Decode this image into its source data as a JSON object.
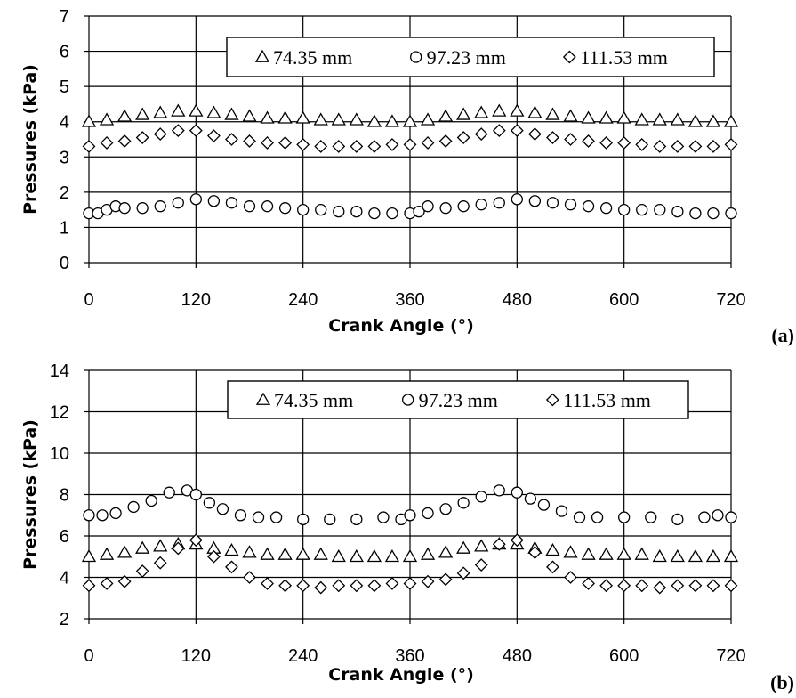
{
  "chart_data": [
    {
      "type": "scatter",
      "panel_label": "(a)",
      "xlabel": "Crank Angle (°)",
      "ylabel": "Pressures (kPa)",
      "xlim": [
        0,
        720
      ],
      "ylim": [
        0,
        7
      ],
      "xticks": [
        0,
        120,
        240,
        360,
        480,
        600,
        720
      ],
      "yticks": [
        0,
        1,
        2,
        3,
        4,
        5,
        6,
        7
      ],
      "grid": true,
      "legend_position": "top-right",
      "series": [
        {
          "name": "74.35 mm",
          "marker": "triangle",
          "points": [
            [
              0,
              4.0
            ],
            [
              20,
              4.05
            ],
            [
              40,
              4.15
            ],
            [
              60,
              4.2
            ],
            [
              80,
              4.25
            ],
            [
              100,
              4.3
            ],
            [
              120,
              4.3
            ],
            [
              140,
              4.25
            ],
            [
              160,
              4.2
            ],
            [
              180,
              4.15
            ],
            [
              200,
              4.1
            ],
            [
              220,
              4.1
            ],
            [
              240,
              4.1
            ],
            [
              260,
              4.05
            ],
            [
              280,
              4.05
            ],
            [
              300,
              4.05
            ],
            [
              320,
              4.0
            ],
            [
              340,
              4.0
            ],
            [
              360,
              4.0
            ],
            [
              380,
              4.05
            ],
            [
              400,
              4.15
            ],
            [
              420,
              4.2
            ],
            [
              440,
              4.25
            ],
            [
              460,
              4.3
            ],
            [
              480,
              4.3
            ],
            [
              500,
              4.25
            ],
            [
              520,
              4.2
            ],
            [
              540,
              4.15
            ],
            [
              560,
              4.1
            ],
            [
              580,
              4.1
            ],
            [
              600,
              4.1
            ],
            [
              620,
              4.05
            ],
            [
              640,
              4.05
            ],
            [
              660,
              4.05
            ],
            [
              680,
              4.0
            ],
            [
              700,
              4.0
            ],
            [
              720,
              4.0
            ]
          ]
        },
        {
          "name": "97.23 mm",
          "marker": "circle",
          "points": [
            [
              0,
              1.4
            ],
            [
              10,
              1.4
            ],
            [
              20,
              1.5
            ],
            [
              30,
              1.6
            ],
            [
              40,
              1.55
            ],
            [
              60,
              1.55
            ],
            [
              80,
              1.6
            ],
            [
              100,
              1.7
            ],
            [
              120,
              1.8
            ],
            [
              140,
              1.75
            ],
            [
              160,
              1.7
            ],
            [
              180,
              1.6
            ],
            [
              200,
              1.6
            ],
            [
              220,
              1.55
            ],
            [
              240,
              1.5
            ],
            [
              260,
              1.5
            ],
            [
              280,
              1.45
            ],
            [
              300,
              1.45
            ],
            [
              320,
              1.4
            ],
            [
              340,
              1.4
            ],
            [
              360,
              1.4
            ],
            [
              370,
              1.45
            ],
            [
              380,
              1.6
            ],
            [
              400,
              1.55
            ],
            [
              420,
              1.6
            ],
            [
              440,
              1.65
            ],
            [
              460,
              1.7
            ],
            [
              480,
              1.8
            ],
            [
              500,
              1.75
            ],
            [
              520,
              1.7
            ],
            [
              540,
              1.65
            ],
            [
              560,
              1.6
            ],
            [
              580,
              1.55
            ],
            [
              600,
              1.5
            ],
            [
              620,
              1.5
            ],
            [
              640,
              1.5
            ],
            [
              660,
              1.45
            ],
            [
              680,
              1.4
            ],
            [
              700,
              1.4
            ],
            [
              720,
              1.4
            ]
          ]
        },
        {
          "name": "111.53 mm",
          "marker": "diamond",
          "points": [
            [
              0,
              3.3
            ],
            [
              20,
              3.4
            ],
            [
              40,
              3.45
            ],
            [
              60,
              3.55
            ],
            [
              80,
              3.65
            ],
            [
              100,
              3.75
            ],
            [
              120,
              3.75
            ],
            [
              140,
              3.6
            ],
            [
              160,
              3.5
            ],
            [
              180,
              3.45
            ],
            [
              200,
              3.4
            ],
            [
              220,
              3.4
            ],
            [
              240,
              3.35
            ],
            [
              260,
              3.3
            ],
            [
              280,
              3.3
            ],
            [
              300,
              3.3
            ],
            [
              320,
              3.3
            ],
            [
              340,
              3.35
            ],
            [
              360,
              3.35
            ],
            [
              380,
              3.4
            ],
            [
              400,
              3.45
            ],
            [
              420,
              3.55
            ],
            [
              440,
              3.65
            ],
            [
              460,
              3.75
            ],
            [
              480,
              3.75
            ],
            [
              500,
              3.65
            ],
            [
              520,
              3.55
            ],
            [
              540,
              3.5
            ],
            [
              560,
              3.45
            ],
            [
              580,
              3.4
            ],
            [
              600,
              3.4
            ],
            [
              620,
              3.35
            ],
            [
              640,
              3.3
            ],
            [
              660,
              3.3
            ],
            [
              680,
              3.3
            ],
            [
              700,
              3.3
            ],
            [
              720,
              3.35
            ]
          ]
        }
      ]
    },
    {
      "type": "scatter",
      "panel_label": "(b)",
      "xlabel": "Crank Angle (°)",
      "ylabel": "Pressures (kPa)",
      "xlim": [
        0,
        720
      ],
      "ylim": [
        2,
        14
      ],
      "xticks": [
        0,
        120,
        240,
        360,
        480,
        600,
        720
      ],
      "yticks": [
        2,
        4,
        6,
        8,
        10,
        12,
        14
      ],
      "grid": true,
      "legend_position": "top-right",
      "series": [
        {
          "name": "74.35 mm",
          "marker": "triangle",
          "points": [
            [
              0,
              5.0
            ],
            [
              20,
              5.1
            ],
            [
              40,
              5.2
            ],
            [
              60,
              5.4
            ],
            [
              80,
              5.5
            ],
            [
              100,
              5.6
            ],
            [
              120,
              5.6
            ],
            [
              140,
              5.4
            ],
            [
              160,
              5.3
            ],
            [
              180,
              5.2
            ],
            [
              200,
              5.1
            ],
            [
              220,
              5.1
            ],
            [
              240,
              5.1
            ],
            [
              260,
              5.1
            ],
            [
              280,
              5.0
            ],
            [
              300,
              5.0
            ],
            [
              320,
              5.0
            ],
            [
              340,
              5.0
            ],
            [
              360,
              5.0
            ],
            [
              380,
              5.1
            ],
            [
              400,
              5.2
            ],
            [
              420,
              5.4
            ],
            [
              440,
              5.5
            ],
            [
              460,
              5.6
            ],
            [
              480,
              5.6
            ],
            [
              500,
              5.4
            ],
            [
              520,
              5.3
            ],
            [
              540,
              5.2
            ],
            [
              560,
              5.1
            ],
            [
              580,
              5.1
            ],
            [
              600,
              5.1
            ],
            [
              620,
              5.1
            ],
            [
              640,
              5.0
            ],
            [
              660,
              5.0
            ],
            [
              680,
              5.0
            ],
            [
              700,
              5.0
            ],
            [
              720,
              5.0
            ]
          ]
        },
        {
          "name": "97.23 mm",
          "marker": "circle",
          "points": [
            [
              0,
              7.0
            ],
            [
              15,
              7.0
            ],
            [
              30,
              7.1
            ],
            [
              50,
              7.4
            ],
            [
              70,
              7.7
            ],
            [
              90,
              8.1
            ],
            [
              110,
              8.2
            ],
            [
              120,
              8.0
            ],
            [
              135,
              7.6
            ],
            [
              150,
              7.3
            ],
            [
              170,
              7.0
            ],
            [
              190,
              6.9
            ],
            [
              210,
              6.9
            ],
            [
              240,
              6.8
            ],
            [
              270,
              6.8
            ],
            [
              300,
              6.8
            ],
            [
              330,
              6.9
            ],
            [
              350,
              6.8
            ],
            [
              360,
              7.0
            ],
            [
              380,
              7.1
            ],
            [
              400,
              7.3
            ],
            [
              420,
              7.6
            ],
            [
              440,
              7.9
            ],
            [
              460,
              8.2
            ],
            [
              480,
              8.1
            ],
            [
              495,
              7.8
            ],
            [
              510,
              7.5
            ],
            [
              530,
              7.2
            ],
            [
              550,
              6.9
            ],
            [
              570,
              6.9
            ],
            [
              600,
              6.9
            ],
            [
              630,
              6.9
            ],
            [
              660,
              6.8
            ],
            [
              690,
              6.9
            ],
            [
              705,
              7.0
            ],
            [
              720,
              6.9
            ]
          ]
        },
        {
          "name": "111.53 mm",
          "marker": "diamond",
          "points": [
            [
              0,
              3.6
            ],
            [
              20,
              3.7
            ],
            [
              40,
              3.8
            ],
            [
              60,
              4.3
            ],
            [
              80,
              4.7
            ],
            [
              100,
              5.4
            ],
            [
              120,
              5.8
            ],
            [
              140,
              5.0
            ],
            [
              160,
              4.5
            ],
            [
              180,
              4.0
            ],
            [
              200,
              3.7
            ],
            [
              220,
              3.6
            ],
            [
              240,
              3.6
            ],
            [
              260,
              3.5
            ],
            [
              280,
              3.6
            ],
            [
              300,
              3.6
            ],
            [
              320,
              3.6
            ],
            [
              340,
              3.7
            ],
            [
              360,
              3.7
            ],
            [
              380,
              3.8
            ],
            [
              400,
              3.9
            ],
            [
              420,
              4.2
            ],
            [
              440,
              4.6
            ],
            [
              460,
              5.6
            ],
            [
              480,
              5.8
            ],
            [
              500,
              5.2
            ],
            [
              520,
              4.5
            ],
            [
              540,
              4.0
            ],
            [
              560,
              3.7
            ],
            [
              580,
              3.6
            ],
            [
              600,
              3.6
            ],
            [
              620,
              3.6
            ],
            [
              640,
              3.5
            ],
            [
              660,
              3.6
            ],
            [
              680,
              3.6
            ],
            [
              700,
              3.6
            ],
            [
              720,
              3.6
            ]
          ]
        }
      ]
    }
  ]
}
